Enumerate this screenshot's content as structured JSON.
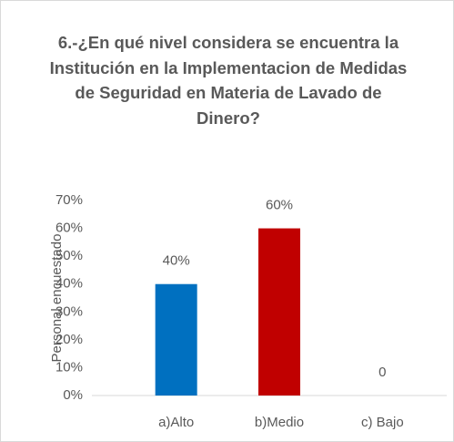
{
  "chart_data": {
    "type": "bar",
    "title": "6.-¿En qué nivel considera se encuentra la Institución en la Implementacion de Medidas de Seguridad en Materia de Lavado de Dinero?",
    "ylabel": "Personal encuestado",
    "categories": [
      "a)Alto",
      "b)Medio",
      "c) Bajo"
    ],
    "values": [
      40,
      60,
      0
    ],
    "value_labels": [
      "40%",
      "60%",
      "0"
    ],
    "colors": [
      "#0070c0",
      "#c00000",
      "#a5a5a5"
    ],
    "ylim": [
      0,
      70
    ],
    "yticks": [
      {
        "value": 0,
        "label": "0%"
      },
      {
        "value": 10,
        "label": "10%"
      },
      {
        "value": 20,
        "label": "20%"
      },
      {
        "value": 30,
        "label": "30%"
      },
      {
        "value": 40,
        "label": "40%"
      },
      {
        "value": 50,
        "label": "50%"
      },
      {
        "value": 60,
        "label": "60%"
      },
      {
        "value": 70,
        "label": "70%"
      }
    ],
    "grid": false
  }
}
